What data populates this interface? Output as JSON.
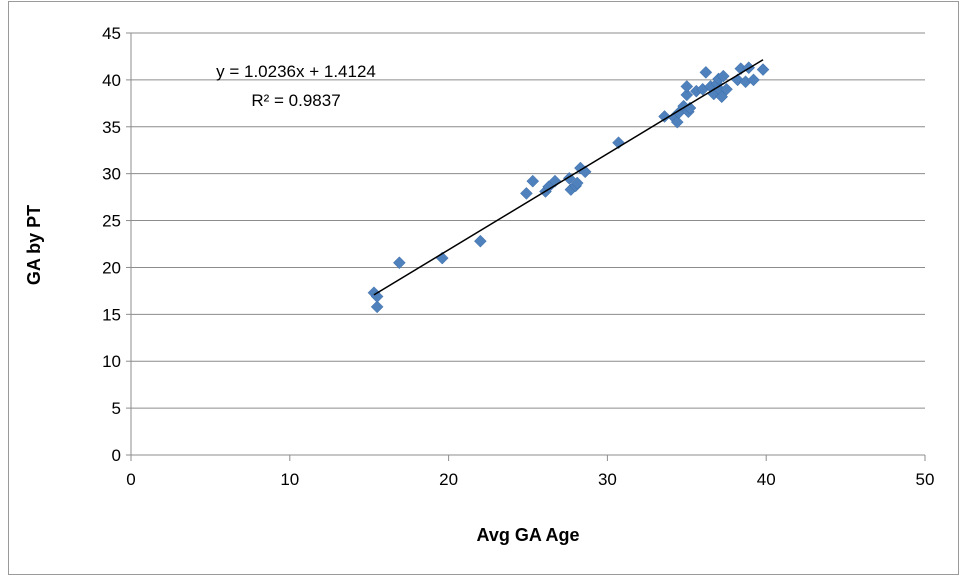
{
  "chart_data": {
    "type": "scatter",
    "title": "",
    "xlabel": "Avg GA Age",
    "ylabel": "GA by PT",
    "xlim": [
      0,
      50
    ],
    "ylim": [
      0,
      45
    ],
    "x_ticks": [
      0,
      10,
      20,
      30,
      40,
      50
    ],
    "y_ticks": [
      0,
      5,
      10,
      15,
      20,
      25,
      30,
      35,
      40,
      45
    ],
    "grid": "horizontal",
    "legend": "none",
    "marker": "diamond",
    "marker_color": "#4f81bd",
    "trendline": {
      "type": "linear",
      "slope": 1.0236,
      "intercept": 1.4124,
      "x_range": [
        15.3,
        39.8
      ],
      "equation_label": "y = 1.0236x + 1.4124",
      "r2_label": "R² = 0.9837",
      "color": "#000000"
    },
    "points": [
      {
        "x": 15.3,
        "y": 17.3
      },
      {
        "x": 15.5,
        "y": 15.8
      },
      {
        "x": 15.5,
        "y": 16.9
      },
      {
        "x": 16.9,
        "y": 20.5
      },
      {
        "x": 19.6,
        "y": 21.0
      },
      {
        "x": 22.0,
        "y": 22.8
      },
      {
        "x": 24.9,
        "y": 27.9
      },
      {
        "x": 25.3,
        "y": 29.2
      },
      {
        "x": 26.1,
        "y": 28.1
      },
      {
        "x": 26.3,
        "y": 28.6
      },
      {
        "x": 26.7,
        "y": 29.2
      },
      {
        "x": 27.6,
        "y": 29.5
      },
      {
        "x": 27.7,
        "y": 28.3
      },
      {
        "x": 28.0,
        "y": 28.7
      },
      {
        "x": 28.1,
        "y": 29.0
      },
      {
        "x": 28.3,
        "y": 30.6
      },
      {
        "x": 28.6,
        "y": 30.2
      },
      {
        "x": 30.7,
        "y": 33.3
      },
      {
        "x": 33.6,
        "y": 36.1
      },
      {
        "x": 34.2,
        "y": 36.0
      },
      {
        "x": 34.4,
        "y": 35.5
      },
      {
        "x": 34.5,
        "y": 36.5
      },
      {
        "x": 34.8,
        "y": 37.2
      },
      {
        "x": 35.0,
        "y": 38.4
      },
      {
        "x": 35.0,
        "y": 39.3
      },
      {
        "x": 35.1,
        "y": 36.6
      },
      {
        "x": 35.2,
        "y": 37.0
      },
      {
        "x": 35.6,
        "y": 38.8
      },
      {
        "x": 36.0,
        "y": 39.0
      },
      {
        "x": 36.2,
        "y": 40.8
      },
      {
        "x": 36.5,
        "y": 39.3
      },
      {
        "x": 36.7,
        "y": 38.5
      },
      {
        "x": 36.9,
        "y": 39.6
      },
      {
        "x": 37.0,
        "y": 40.1
      },
      {
        "x": 37.1,
        "y": 38.9
      },
      {
        "x": 37.2,
        "y": 38.2
      },
      {
        "x": 37.3,
        "y": 40.4
      },
      {
        "x": 37.5,
        "y": 39.0
      },
      {
        "x": 38.2,
        "y": 40.0
      },
      {
        "x": 38.4,
        "y": 41.2
      },
      {
        "x": 38.7,
        "y": 39.8
      },
      {
        "x": 38.9,
        "y": 41.3
      },
      {
        "x": 39.2,
        "y": 40.0
      },
      {
        "x": 39.8,
        "y": 41.1
      }
    ]
  }
}
